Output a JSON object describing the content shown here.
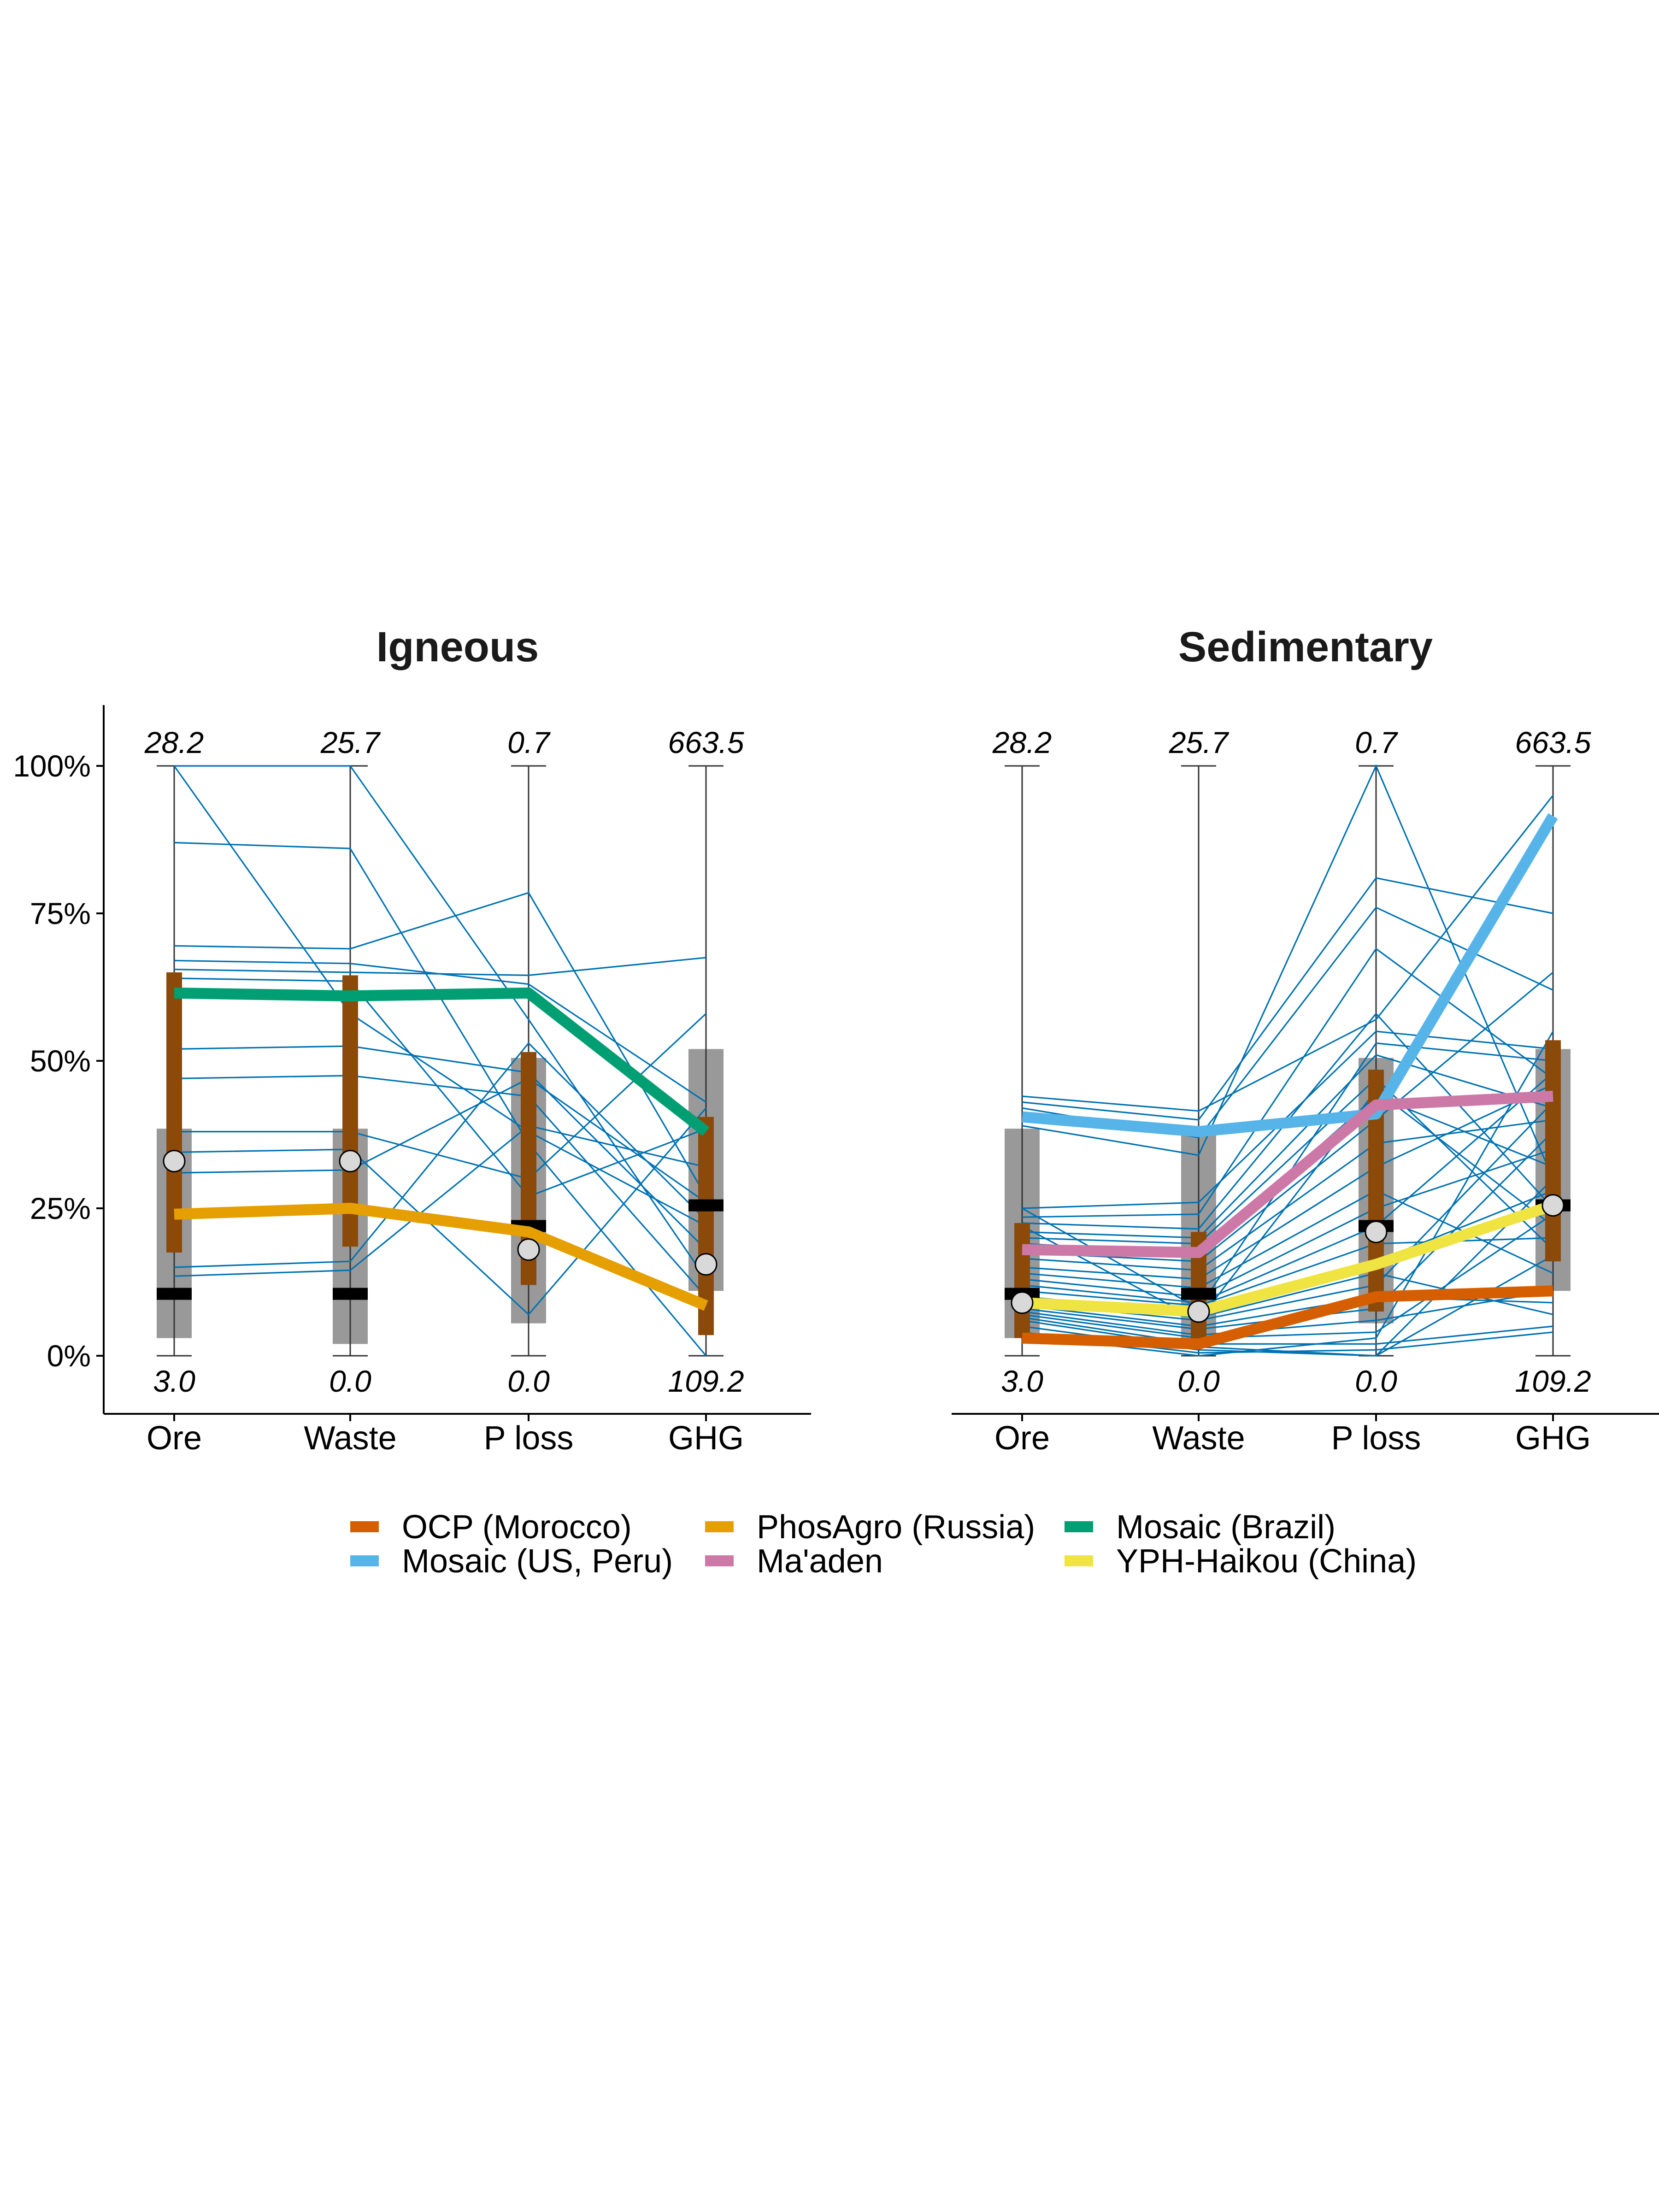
{
  "chart_data": [
    {
      "type": "line",
      "title": "Igneous",
      "axes": [
        "Ore",
        "Waste",
        "P loss",
        "GHG"
      ],
      "axis_min_labels": [
        "3.0",
        "0.0",
        "0.0",
        "109.2"
      ],
      "axis_max_labels": [
        "28.2",
        "25.7",
        "0.7",
        "663.5"
      ],
      "ylim": [
        -0.1,
        1.1
      ],
      "yticks": [
        0,
        0.25,
        0.5,
        0.75,
        1.0
      ],
      "ytick_labels": [
        "0%",
        "25%",
        "50%",
        "75%",
        "100%"
      ],
      "boxes_gray": [
        {
          "q1": 0.03,
          "q3": 0.385
        },
        {
          "q1": 0.02,
          "q3": 0.385
        },
        {
          "q1": 0.055,
          "q3": 0.505
        },
        {
          "q1": 0.11,
          "q3": 0.52
        }
      ],
      "boxes_brown": [
        {
          "q1": 0.175,
          "q3": 0.65
        },
        {
          "q1": 0.185,
          "q3": 0.645
        },
        {
          "q1": 0.12,
          "q3": 0.515
        },
        {
          "q1": 0.035,
          "q3": 0.405
        }
      ],
      "medians": [
        0.105,
        0.105,
        0.22,
        0.255
      ],
      "means": [
        0.33,
        0.33,
        0.18,
        0.155
      ],
      "mines": [
        [
          1.0,
          1.0,
          0.57,
          0.13
        ],
        [
          0.87,
          0.86,
          0.36,
          0.0
        ],
        [
          0.695,
          0.69,
          0.785,
          0.27
        ],
        [
          0.67,
          0.665,
          0.63,
          0.43
        ],
        [
          0.655,
          0.65,
          0.645,
          0.675
        ],
        [
          0.64,
          0.635,
          0.27,
          0.385
        ],
        [
          0.52,
          0.525,
          0.48,
          0.18
        ],
        [
          0.47,
          0.475,
          0.44,
          0.1
        ],
        [
          0.38,
          0.38,
          0.3,
          0.58
        ],
        [
          0.345,
          0.35,
          0.07,
          0.42
        ],
        [
          0.31,
          0.315,
          0.47,
          0.26
        ],
        [
          0.15,
          0.16,
          0.53,
          0.23
        ],
        [
          0.135,
          0.145,
          0.39,
          0.32
        ],
        [
          1.0,
          0.58,
          0.38,
          0.22
        ]
      ],
      "highlight_series": [
        {
          "name": "Mosaic (Brazil)",
          "color": "#009E73",
          "values": [
            0.615,
            0.61,
            0.615,
            0.38
          ]
        },
        {
          "name": "PhosAgro (Russia)",
          "color": "#E69F00",
          "values": [
            0.24,
            0.25,
            0.21,
            0.085
          ]
        }
      ]
    },
    {
      "type": "line",
      "title": "Sedimentary",
      "axes": [
        "Ore",
        "Waste",
        "P loss",
        "GHG"
      ],
      "axis_min_labels": [
        "3.0",
        "0.0",
        "0.0",
        "109.2"
      ],
      "axis_max_labels": [
        "28.2",
        "25.7",
        "0.7",
        "663.5"
      ],
      "ylim": [
        -0.1,
        1.1
      ],
      "boxes_gray": [
        {
          "q1": 0.03,
          "q3": 0.385
        },
        {
          "q1": 0.02,
          "q3": 0.385
        },
        {
          "q1": 0.055,
          "q3": 0.505
        },
        {
          "q1": 0.11,
          "q3": 0.52
        }
      ],
      "boxes_brown": [
        {
          "q1": 0.03,
          "q3": 0.225
        },
        {
          "q1": 0.02,
          "q3": 0.21
        },
        {
          "q1": 0.075,
          "q3": 0.485
        },
        {
          "q1": 0.16,
          "q3": 0.535
        }
      ],
      "medians": [
        0.105,
        0.105,
        0.22,
        0.255
      ],
      "means": [
        0.09,
        0.075,
        0.21,
        0.255
      ],
      "mines": [
        [
          0.44,
          0.415,
          0.57,
          0.95
        ],
        [
          0.43,
          0.4,
          0.81,
          0.75
        ],
        [
          0.42,
          0.37,
          0.76,
          0.62
        ],
        [
          0.39,
          0.34,
          1.0,
          0.3
        ],
        [
          0.25,
          0.26,
          0.55,
          0.52
        ],
        [
          0.235,
          0.24,
          0.69,
          0.47
        ],
        [
          0.225,
          0.215,
          0.58,
          0.25
        ],
        [
          0.21,
          0.2,
          0.51,
          0.42
        ],
        [
          0.2,
          0.19,
          0.47,
          0.18
        ],
        [
          0.19,
          0.175,
          0.44,
          0.32
        ],
        [
          0.175,
          0.16,
          0.4,
          0.65
        ],
        [
          0.165,
          0.145,
          0.36,
          0.4
        ],
        [
          0.15,
          0.13,
          0.32,
          0.46
        ],
        [
          0.14,
          0.115,
          0.28,
          0.14
        ],
        [
          0.13,
          0.1,
          0.25,
          0.35
        ],
        [
          0.12,
          0.09,
          0.22,
          0.48
        ],
        [
          0.11,
          0.085,
          0.19,
          0.2
        ],
        [
          0.1,
          0.075,
          0.16,
          0.28
        ],
        [
          0.095,
          0.065,
          0.14,
          0.07
        ],
        [
          0.09,
          0.06,
          0.12,
          0.43
        ],
        [
          0.085,
          0.05,
          0.1,
          0.09
        ],
        [
          0.08,
          0.045,
          0.08,
          0.38
        ],
        [
          0.075,
          0.035,
          0.06,
          0.11
        ],
        [
          0.07,
          0.03,
          0.04,
          0.24
        ],
        [
          0.065,
          0.02,
          0.02,
          0.05
        ],
        [
          0.06,
          0.015,
          0.0,
          0.3
        ],
        [
          0.05,
          0.01,
          0.0,
          0.17
        ],
        [
          0.04,
          0.005,
          0.01,
          0.04
        ],
        [
          0.035,
          0.0,
          0.03,
          0.55
        ],
        [
          0.25,
          0.08,
          0.53,
          0.5
        ],
        [
          0.22,
          0.06,
          0.45,
          0.22
        ]
      ],
      "highlight_series": [
        {
          "name": "Mosaic (US, Peru)",
          "color": "#56B4E9",
          "values": [
            0.405,
            0.38,
            0.41,
            0.915
          ]
        },
        {
          "name": "Ma'aden",
          "color": "#CC79A7",
          "values": [
            0.18,
            0.175,
            0.425,
            0.44
          ]
        },
        {
          "name": "YPH-Haikou (China)",
          "color": "#F0E442",
          "values": [
            0.09,
            0.075,
            0.155,
            0.255
          ]
        },
        {
          "name": "OCP (Morocco)",
          "color": "#D55E00",
          "values": [
            0.03,
            0.02,
            0.1,
            0.11
          ]
        }
      ]
    }
  ],
  "legend": {
    "placement": "bottom",
    "items": [
      {
        "name": "OCP (Morocco)",
        "color": "#D55E00"
      },
      {
        "name": "PhosAgro (Russia)",
        "color": "#E69F00"
      },
      {
        "name": "Mosaic (Brazil)",
        "color": "#009E73"
      },
      {
        "name": "Mosaic (US, Peru)",
        "color": "#56B4E9"
      },
      {
        "name": "Ma'aden",
        "color": "#CC79A7"
      },
      {
        "name": "YPH-Haikou (China)",
        "color": "#F0E442"
      }
    ]
  },
  "colors": {
    "mine_lines": "#0072B2",
    "box_gray": "#999999",
    "box_brown": "#8B4A0A",
    "median": "#000000",
    "mean_fill": "#D9D9D9"
  }
}
